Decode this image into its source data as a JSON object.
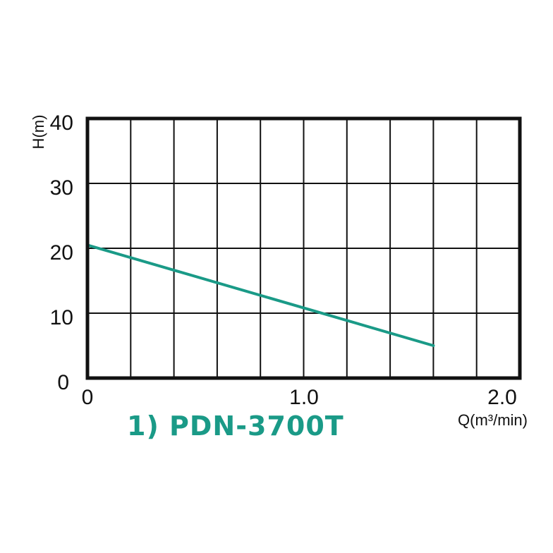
{
  "chart_data": {
    "type": "line",
    "ylabel": "H(m)",
    "xlabel": "Q(m³/min)",
    "xlim": [
      0,
      2.0
    ],
    "ylim": [
      0,
      40
    ],
    "x_ticks": [
      "0",
      "1.0",
      "2.0"
    ],
    "y_ticks": [
      "0",
      "10",
      "20",
      "30",
      "40"
    ],
    "grid": true,
    "legend_position": "bottom-left",
    "series": [
      {
        "name": "1) PDN-3700T",
        "color": "#1a9a87",
        "points": [
          {
            "x": 0.0,
            "y": 20.5
          },
          {
            "x": 1.6,
            "y": 5.0
          }
        ]
      }
    ]
  }
}
